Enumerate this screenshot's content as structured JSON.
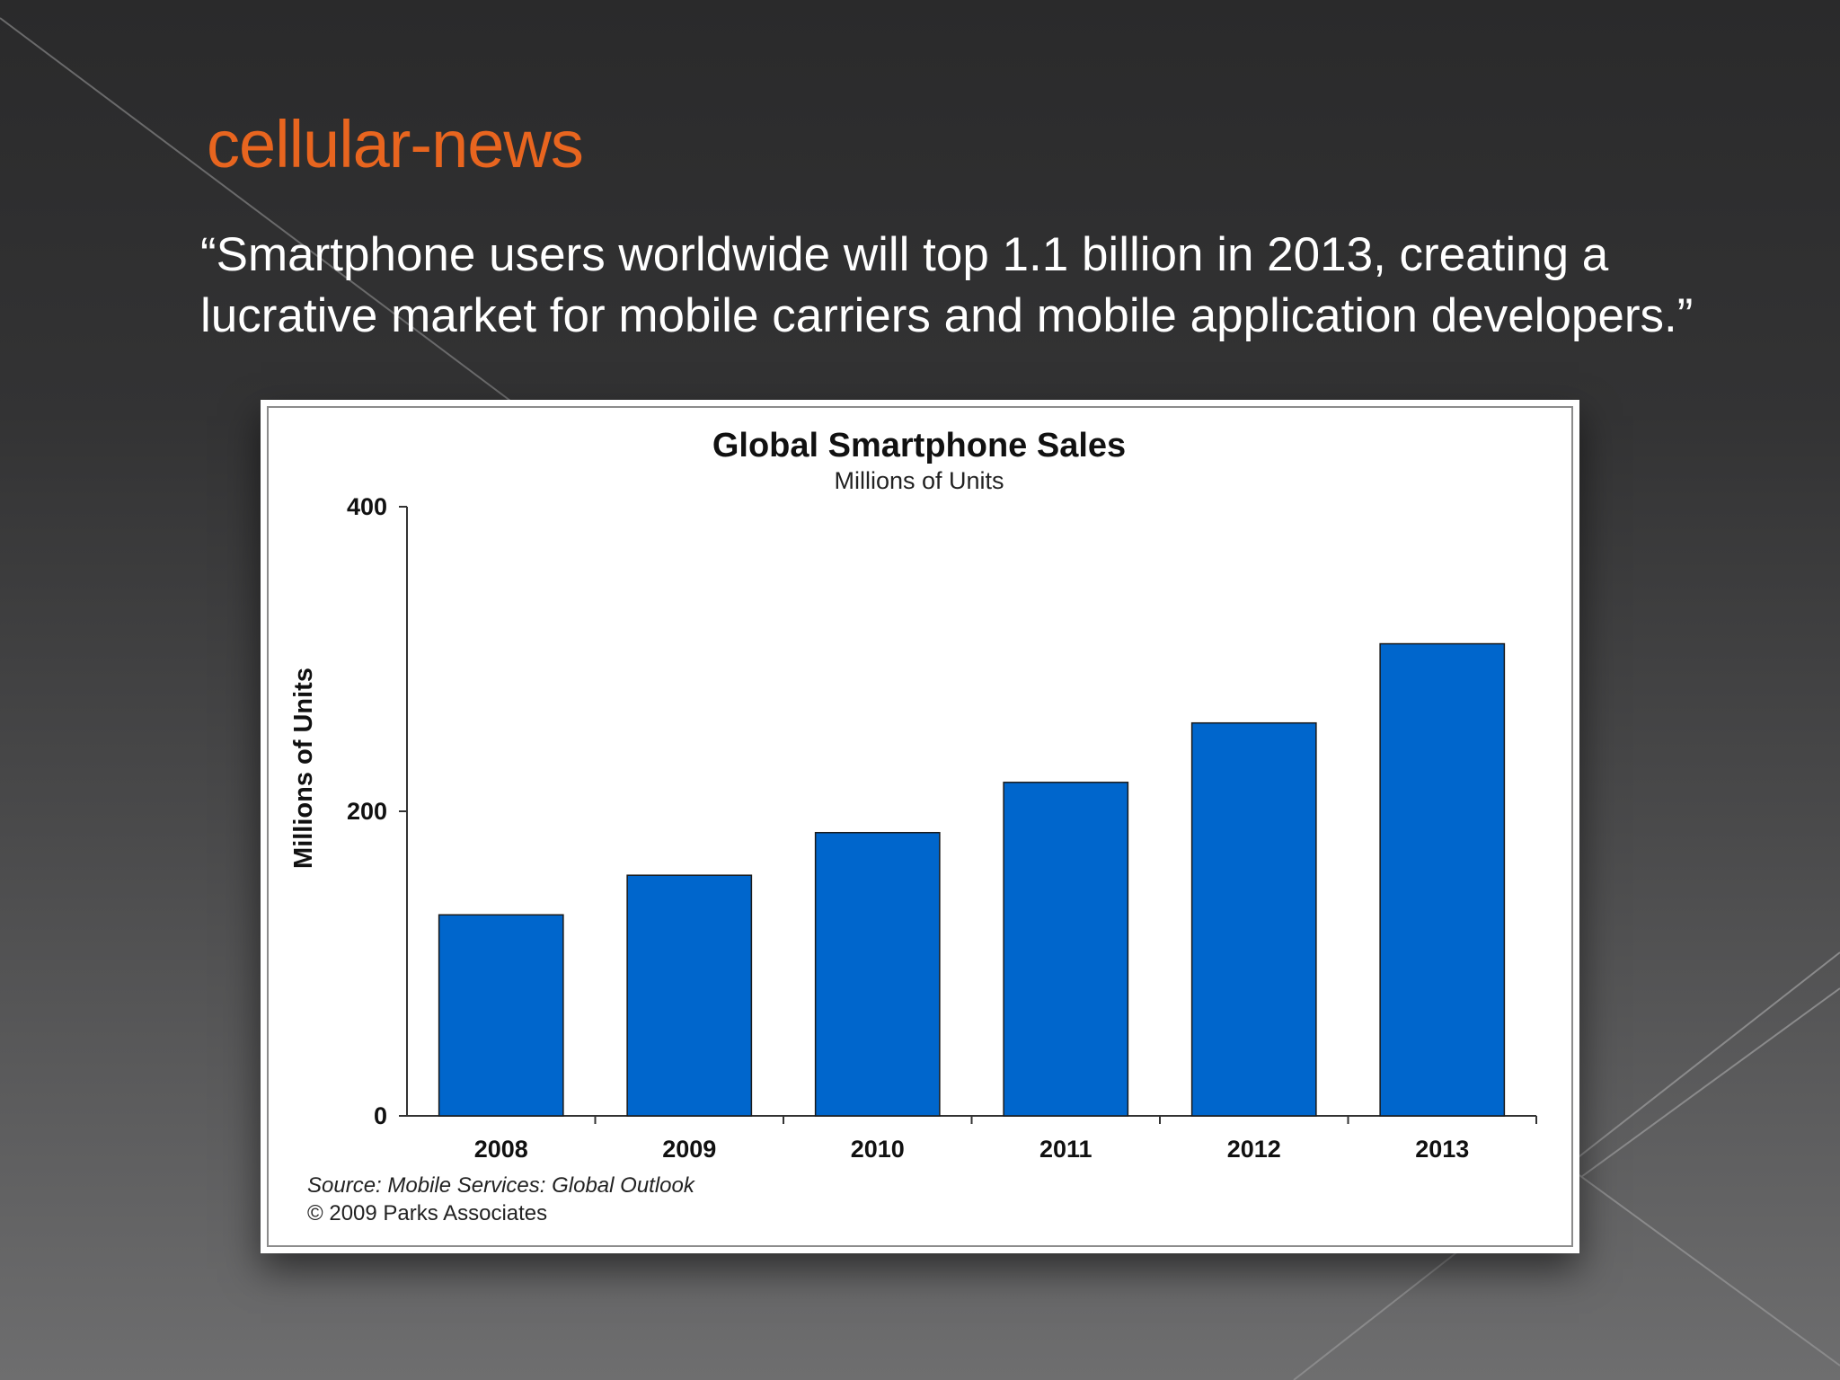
{
  "slide": {
    "title": "cellular-news",
    "quote": "“Smartphone users worldwide will top 1.1 billion in 2013, creating a lucrative market for mobile carriers and mobile application developers.”",
    "title_color": "#e8651f"
  },
  "chart_data": {
    "type": "bar",
    "title": "Global Smartphone Sales",
    "subtitle": "Millions of Units",
    "xlabel": "",
    "ylabel": "Millions of Units",
    "categories": [
      "2008",
      "2009",
      "2010",
      "2011",
      "2012",
      "2013"
    ],
    "values": [
      132,
      158,
      186,
      219,
      258,
      310
    ],
    "ylim": [
      0,
      400
    ],
    "yticks": [
      "0",
      "200",
      "400"
    ],
    "bar_color": "#0066cc",
    "grid": false,
    "source_line": "Source: Mobile Services: Global Outlook",
    "copyright_line": "© 2009 Parks Associates"
  }
}
